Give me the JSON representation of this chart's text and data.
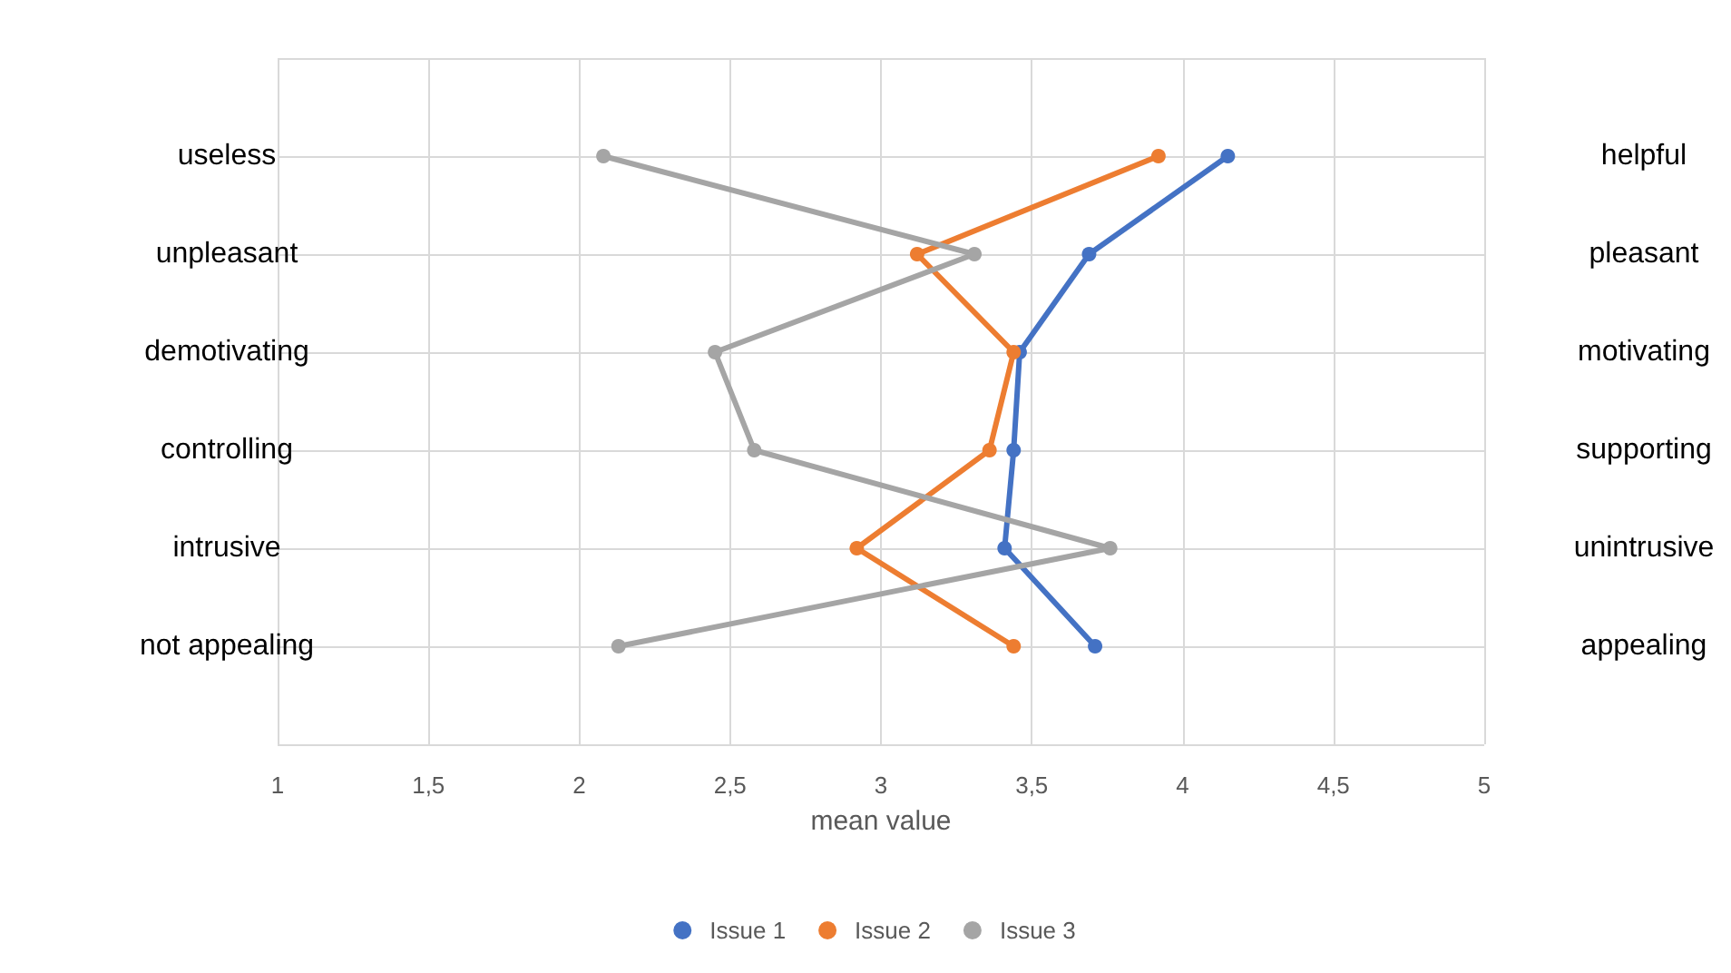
{
  "chart_data": {
    "type": "line",
    "orientation": "horizontal",
    "xlabel": "mean value",
    "categories": [
      "useless",
      "unpleasant",
      "demotivating",
      "controlling",
      "intrusive",
      "not appealing"
    ],
    "y2_categories": [
      "helpful",
      "pleasant",
      "motivating",
      "supporting",
      "unintrusive",
      "appealing"
    ],
    "series": [
      {
        "name": "Issue 1",
        "color": "#4472c4",
        "values": [
          4.15,
          3.69,
          3.46,
          3.44,
          3.41,
          3.71
        ]
      },
      {
        "name": "Issue 2",
        "color": "#ed7d31",
        "values": [
          3.92,
          3.12,
          3.44,
          3.36,
          2.92,
          3.44
        ]
      },
      {
        "name": "Issue 3",
        "color": "#a5a5a5",
        "values": [
          2.08,
          3.31,
          2.45,
          2.58,
          3.76,
          2.13
        ]
      }
    ],
    "xlim": [
      1,
      5
    ],
    "xticks": [
      1,
      {
        "value": 1.5,
        "label": "1,5"
      },
      2,
      {
        "value": 2.5,
        "label": "2,5"
      },
      3,
      {
        "value": 3.5,
        "label": "3,5"
      },
      4,
      {
        "value": 4.5,
        "label": "4,5"
      },
      5
    ],
    "grid": true,
    "legend": "bottom",
    "marker": "circle",
    "line_style": "solid"
  }
}
